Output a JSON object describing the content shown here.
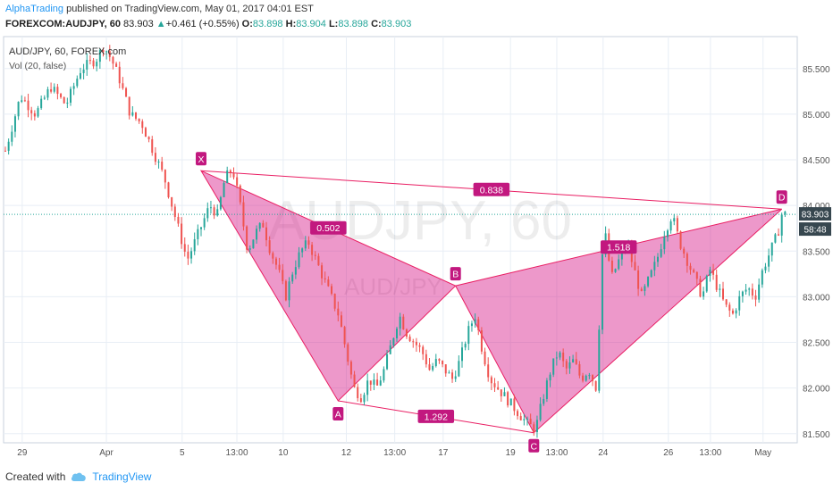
{
  "header": {
    "author": "AlphaTrading",
    "published": "published on TradingView.com, May 01, 2017 04:01 EST",
    "symbol": "FOREXCOM:AUDJPY, 60",
    "price": "83.903",
    "change": "+0.461 (+0.55%)",
    "o_label": "O:",
    "o": "83.898",
    "h_label": "H:",
    "h": "83.904",
    "l_label": "L:",
    "l": "83.898",
    "c_label": "C:",
    "c": "83.903"
  },
  "legend": {
    "title": "AUD/JPY, 60, FOREX.com",
    "volume": "Vol (20, false)"
  },
  "watermark": {
    "main": "AUDJPY, 60",
    "sub": "AUD/JPY"
  },
  "footer": {
    "created": "Created with",
    "brand": "TradingView"
  },
  "colors": {
    "up": "#26a69a",
    "down": "#ef5350",
    "pattern": "#e91e63",
    "pattern_fill": "#d81b8a",
    "label_bg": "#c2187f",
    "price_tag": "#37474f",
    "timer_tag": "#37474f",
    "grid": "#e8eef5"
  },
  "chart_data": {
    "type": "candlestick",
    "symbol": "AUD/JPY",
    "timeframe": "60",
    "y_ticks": [
      "85.500",
      "85.000",
      "84.500",
      "84.000",
      "83.500",
      "83.000",
      "82.500",
      "82.000",
      "81.500"
    ],
    "ylim": [
      81.4,
      85.85
    ],
    "x_ticks": [
      "29",
      "Apr",
      "5",
      "13:00",
      "10",
      "12",
      "13:00",
      "17",
      "19",
      "13:00",
      "24",
      "26",
      "13:00",
      "May"
    ],
    "last_price": "83.903",
    "countdown": "58:48",
    "close_path": [
      [
        0,
        84.6
      ],
      [
        4,
        85.2
      ],
      [
        8,
        85.0
      ],
      [
        12,
        85.3
      ],
      [
        16,
        85.1
      ],
      [
        20,
        85.5
      ],
      [
        24,
        85.6
      ],
      [
        26,
        85.75
      ],
      [
        28,
        85.6
      ],
      [
        30,
        85.4
      ],
      [
        33,
        85.0
      ],
      [
        36,
        84.9
      ],
      [
        39,
        84.6
      ],
      [
        42,
        84.3
      ],
      [
        44,
        84.0
      ],
      [
        46,
        83.7
      ],
      [
        48,
        83.4
      ],
      [
        50,
        83.6
      ],
      [
        52,
        83.8
      ],
      [
        54,
        84.0
      ],
      [
        56,
        83.9
      ],
      [
        58,
        84.3
      ],
      [
        60,
        84.4
      ],
      [
        62,
        84.0
      ],
      [
        64,
        83.5
      ],
      [
        66,
        83.7
      ],
      [
        68,
        83.8
      ],
      [
        70,
        83.5
      ],
      [
        72,
        83.3
      ],
      [
        74,
        83.0
      ],
      [
        76,
        83.3
      ],
      [
        78,
        83.5
      ],
      [
        80,
        83.6
      ],
      [
        82,
        83.4
      ],
      [
        84,
        83.2
      ],
      [
        86,
        83.0
      ],
      [
        88,
        82.8
      ],
      [
        90,
        82.4
      ],
      [
        92,
        82.0
      ],
      [
        94,
        81.9
      ],
      [
        96,
        82.1
      ],
      [
        98,
        82.0
      ],
      [
        100,
        82.2
      ],
      [
        102,
        82.5
      ],
      [
        104,
        82.8
      ],
      [
        106,
        82.6
      ],
      [
        108,
        82.5
      ],
      [
        110,
        82.4
      ],
      [
        112,
        82.2
      ],
      [
        114,
        82.3
      ],
      [
        116,
        82.2
      ],
      [
        118,
        82.1
      ],
      [
        120,
        82.3
      ],
      [
        122,
        82.6
      ],
      [
        124,
        82.8
      ],
      [
        126,
        82.4
      ],
      [
        128,
        82.1
      ],
      [
        130,
        82.0
      ],
      [
        132,
        81.9
      ],
      [
        134,
        81.8
      ],
      [
        136,
        81.7
      ],
      [
        138,
        81.6
      ],
      [
        140,
        81.55
      ],
      [
        142,
        81.9
      ],
      [
        144,
        82.2
      ],
      [
        146,
        82.4
      ],
      [
        148,
        82.2
      ],
      [
        150,
        82.3
      ],
      [
        152,
        82.1
      ],
      [
        154,
        82.2
      ],
      [
        156,
        82.0
      ],
      [
        158,
        83.8
      ],
      [
        160,
        83.2
      ],
      [
        162,
        83.4
      ],
      [
        164,
        83.6
      ],
      [
        166,
        83.3
      ],
      [
        168,
        83.0
      ],
      [
        170,
        83.2
      ],
      [
        172,
        83.4
      ],
      [
        174,
        83.7
      ],
      [
        176,
        83.9
      ],
      [
        178,
        83.6
      ],
      [
        180,
        83.4
      ],
      [
        182,
        83.2
      ],
      [
        184,
        83.0
      ],
      [
        186,
        83.3
      ],
      [
        188,
        83.1
      ],
      [
        190,
        82.9
      ],
      [
        192,
        82.8
      ],
      [
        194,
        83.0
      ],
      [
        196,
        83.1
      ],
      [
        198,
        83.0
      ],
      [
        200,
        83.3
      ],
      [
        202,
        83.5
      ],
      [
        204,
        83.7
      ],
      [
        205,
        83.903
      ]
    ],
    "harmonic_pattern": {
      "points": [
        {
          "label": "X",
          "index": 60,
          "price": 84.38
        },
        {
          "label": "A",
          "index": 102,
          "price": 81.86
        },
        {
          "label": "B",
          "index": 138,
          "price": 83.12
        },
        {
          "label": "C",
          "index": 162,
          "price": 81.51
        },
        {
          "label": "D",
          "index": 238,
          "price": 83.96
        }
      ],
      "ratios": [
        {
          "label": "0.502",
          "between": [
            "X",
            "B"
          ]
        },
        {
          "label": "1.292",
          "between": [
            "A",
            "C"
          ]
        },
        {
          "label": "1.518",
          "between": [
            "B",
            "D"
          ]
        },
        {
          "label": "0.838",
          "between": [
            "X",
            "D"
          ]
        }
      ]
    }
  }
}
